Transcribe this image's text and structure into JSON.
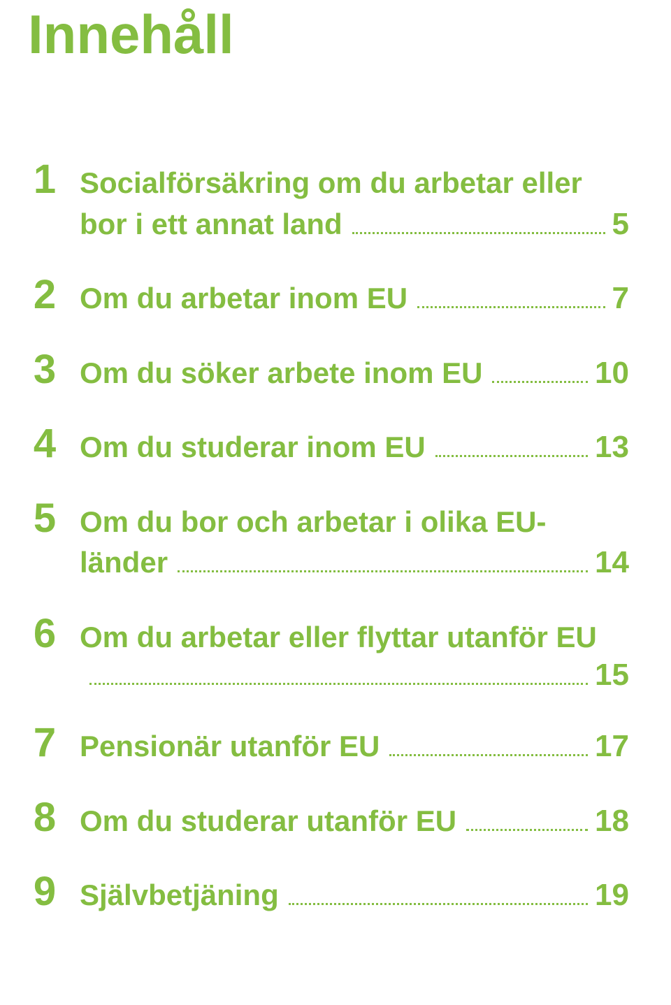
{
  "title": "Innehåll",
  "colors": {
    "accent": "#84bd41",
    "text": "#333333",
    "background": "#ffffff"
  },
  "toc": [
    {
      "num": "1",
      "lines": [
        "Socialförsäkring om du arbetar eller",
        "bor i ett annat land"
      ],
      "page": "5"
    },
    {
      "num": "2",
      "lines": [
        "Om du arbetar inom EU"
      ],
      "page": "7"
    },
    {
      "num": "3",
      "lines": [
        "Om du söker arbete inom EU"
      ],
      "page": "10"
    },
    {
      "num": "4",
      "lines": [
        "Om du studerar inom EU"
      ],
      "page": "13"
    },
    {
      "num": "5",
      "lines": [
        "Om du bor och arbetar i olika EU-",
        "länder"
      ],
      "page": "14"
    },
    {
      "num": "6",
      "lines": [
        "Om du arbetar eller flyttar utanför EU",
        ""
      ],
      "page": "15"
    },
    {
      "num": "7",
      "lines": [
        "Pensionär utanför EU"
      ],
      "page": "17"
    },
    {
      "num": "8",
      "lines": [
        "Om du studerar utanför EU"
      ],
      "page": "18"
    },
    {
      "num": "9",
      "lines": [
        "Självbetjäning"
      ],
      "page": "19"
    }
  ]
}
